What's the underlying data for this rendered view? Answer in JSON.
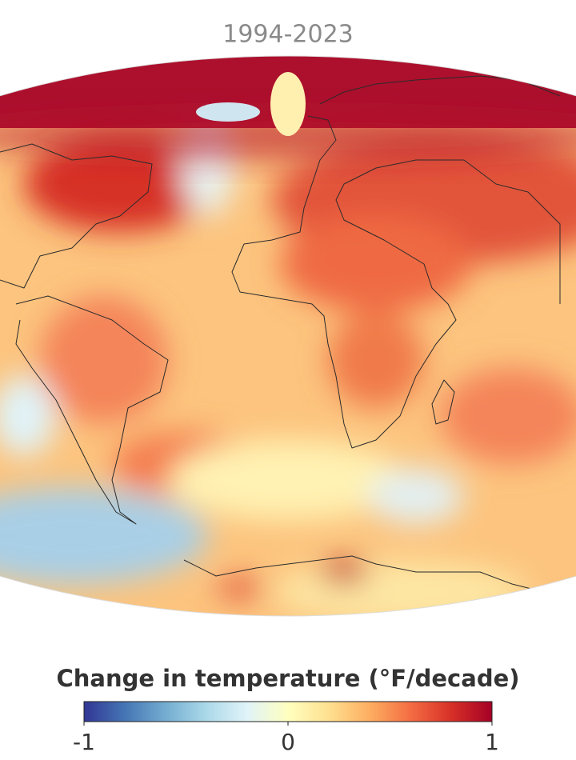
{
  "title": "1994-2023",
  "legend": {
    "title": "Change in temperature (°F/decade)",
    "min": -1,
    "max": 1,
    "ticks": [
      -1,
      0,
      1
    ],
    "colors": [
      "#313695",
      "#4575b4",
      "#74add1",
      "#abd9e9",
      "#e0f3f8",
      "#ffffbf",
      "#fee090",
      "#fdae61",
      "#f46d43",
      "#d73027",
      "#a50026"
    ]
  }
}
